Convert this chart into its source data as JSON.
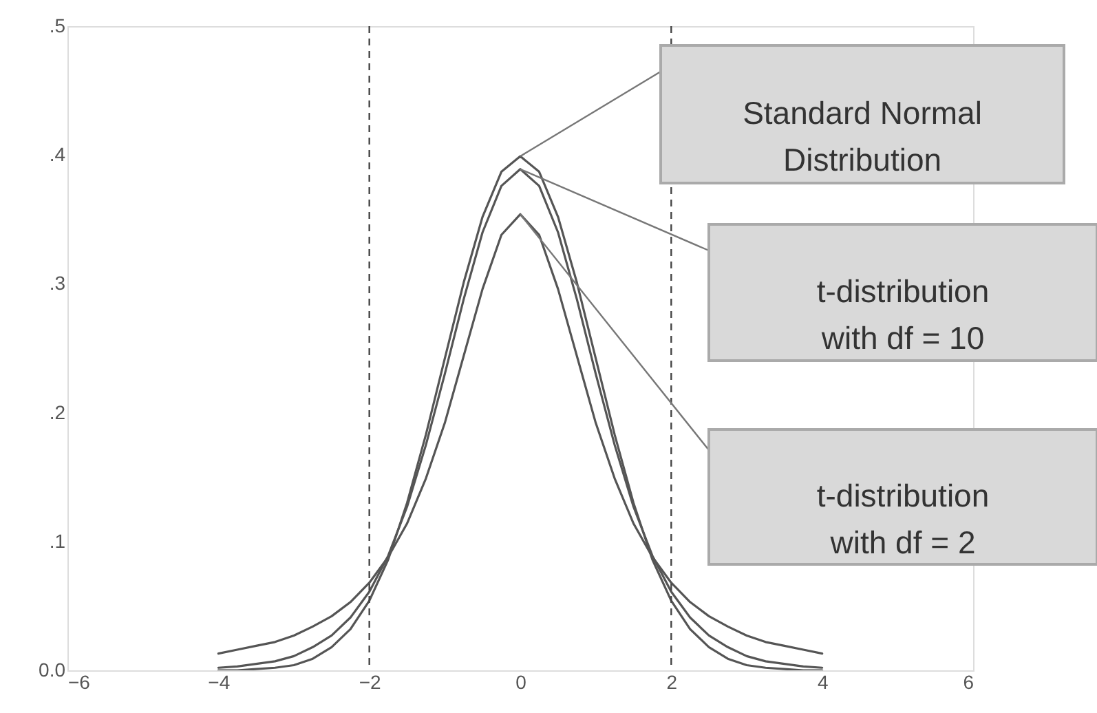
{
  "chart_data": {
    "type": "line",
    "x": [
      -4,
      -3.75,
      -3.5,
      -3.25,
      -3,
      -2.75,
      -2.5,
      -2.25,
      -2,
      -1.75,
      -1.5,
      -1.25,
      -1,
      -0.75,
      -0.5,
      -0.25,
      0,
      0.25,
      0.5,
      0.75,
      1,
      1.25,
      1.5,
      1.75,
      2,
      2.25,
      2.5,
      2.75,
      3,
      3.25,
      3.5,
      3.75,
      4
    ],
    "series": [
      {
        "color": "#555555",
        "values": [
          0.0,
          0.0,
          0.001,
          0.002,
          0.004,
          0.009,
          0.018,
          0.032,
          0.054,
          0.086,
          0.13,
          0.183,
          0.242,
          0.301,
          0.352,
          0.387,
          0.399,
          0.387,
          0.352,
          0.301,
          0.242,
          0.183,
          0.13,
          0.086,
          0.054,
          0.032,
          0.018,
          0.009,
          0.004,
          0.002,
          0.001,
          0.0,
          0.0
        ]
      },
      {
        "color": "#555555",
        "values": [
          0.002,
          0.003,
          0.005,
          0.007,
          0.011,
          0.018,
          0.027,
          0.041,
          0.061,
          0.089,
          0.127,
          0.175,
          0.23,
          0.288,
          0.34,
          0.376,
          0.389,
          0.376,
          0.34,
          0.288,
          0.23,
          0.175,
          0.127,
          0.089,
          0.061,
          0.041,
          0.027,
          0.018,
          0.011,
          0.007,
          0.005,
          0.003,
          0.002
        ]
      },
      {
        "color": "#555555",
        "values": [
          0.013,
          0.016,
          0.019,
          0.022,
          0.027,
          0.034,
          0.042,
          0.053,
          0.068,
          0.088,
          0.114,
          0.149,
          0.192,
          0.244,
          0.296,
          0.338,
          0.354,
          0.338,
          0.296,
          0.244,
          0.192,
          0.149,
          0.114,
          0.088,
          0.068,
          0.053,
          0.042,
          0.034,
          0.027,
          0.022,
          0.019,
          0.016,
          0.013
        ]
      }
    ],
    "xlim": [
      -6,
      6
    ],
    "xticks": [
      -6,
      -4,
      -2,
      0,
      2,
      4,
      6
    ],
    "ylim": [
      0,
      0.5
    ],
    "yticks": [
      {
        "value": 0,
        "label": "0.0"
      },
      {
        "value": 0.1,
        "label": ".1"
      },
      {
        "value": 0.2,
        "label": ".2"
      },
      {
        "value": 0.3,
        "label": ".3"
      },
      {
        "value": 0.4,
        "label": ".4"
      },
      {
        "value": 0.5,
        "label": ".5"
      }
    ],
    "grid": false,
    "marker": "none",
    "line_style": "solid",
    "ref_lines": [
      {
        "axis": "x",
        "value": -2,
        "color": "#444444",
        "line_style": "dashed"
      },
      {
        "axis": "x",
        "value": 2,
        "color": "#444444",
        "line_style": "dashed"
      }
    ],
    "annotations": [
      "Standard Normal Distribution",
      "t-distribution with df = 10",
      "t-distribution with df = 2"
    ]
  }
}
